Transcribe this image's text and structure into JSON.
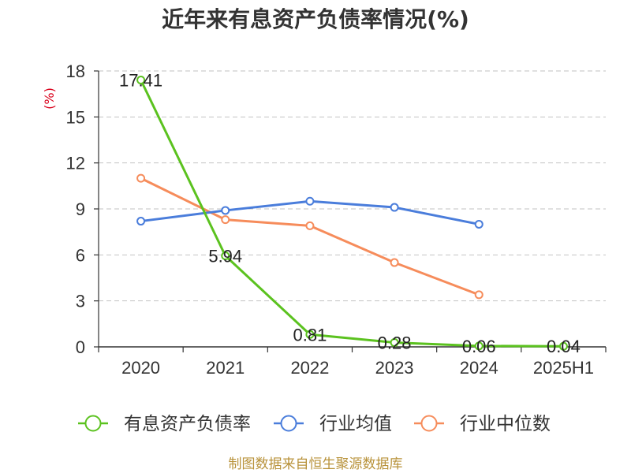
{
  "chart_data": {
    "type": "line",
    "title": "近年来有息资产负债率情况(%)",
    "ylabel": "(%)",
    "categories": [
      "2020",
      "2021",
      "2022",
      "2023",
      "2024",
      "2025H1"
    ],
    "ylim": [
      0,
      18
    ],
    "yticks": [
      0,
      3,
      6,
      9,
      12,
      15,
      18
    ],
    "grid": true,
    "legend_position": "bottom",
    "series": [
      {
        "name": "有息资产负债率",
        "color": "#5bc21f",
        "data_labels": true,
        "values": [
          17.41,
          5.94,
          0.81,
          0.28,
          0.06,
          0.04
        ]
      },
      {
        "name": "行业均值",
        "color": "#4a7ddb",
        "data_labels": false,
        "values": [
          8.2,
          8.9,
          9.5,
          9.1,
          8.0,
          null
        ]
      },
      {
        "name": "行业中位数",
        "color": "#f68c5b",
        "data_labels": false,
        "values": [
          11.0,
          8.3,
          7.9,
          5.5,
          3.4,
          null
        ]
      }
    ]
  },
  "footer": {
    "source": "制图数据来自恒生聚源数据库"
  }
}
